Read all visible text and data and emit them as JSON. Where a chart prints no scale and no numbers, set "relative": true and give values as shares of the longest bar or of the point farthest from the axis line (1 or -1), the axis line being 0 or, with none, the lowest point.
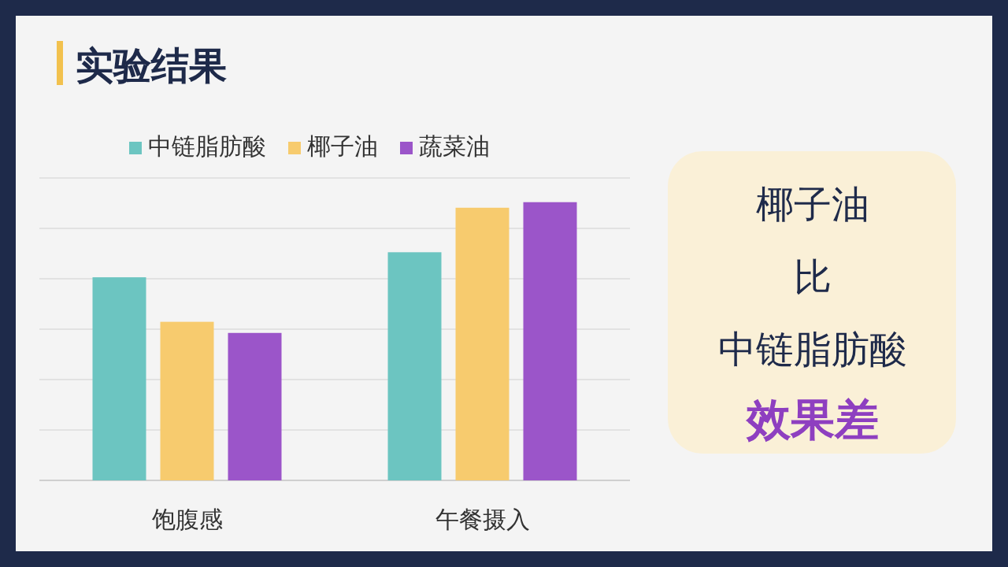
{
  "chart_data": {
    "type": "bar",
    "title": "实验结果",
    "relative": true,
    "grid": "y",
    "legend": "top",
    "categories": [
      "饱腹感",
      "午餐摄入"
    ],
    "series": [
      {
        "name": "中链脂肪酸",
        "color": "#6cc5c1",
        "values": [
          0.73,
          0.82
        ]
      },
      {
        "name": "椰子油",
        "color": "#f7cb6e",
        "values": [
          0.57,
          0.98
        ]
      },
      {
        "name": "蔬菜油",
        "color": "#9b55c9",
        "values": [
          0.53,
          1
        ]
      }
    ],
    "annotations": [
      "椰子油",
      "比",
      "中链脂肪酸",
      "效果差"
    ]
  }
}
